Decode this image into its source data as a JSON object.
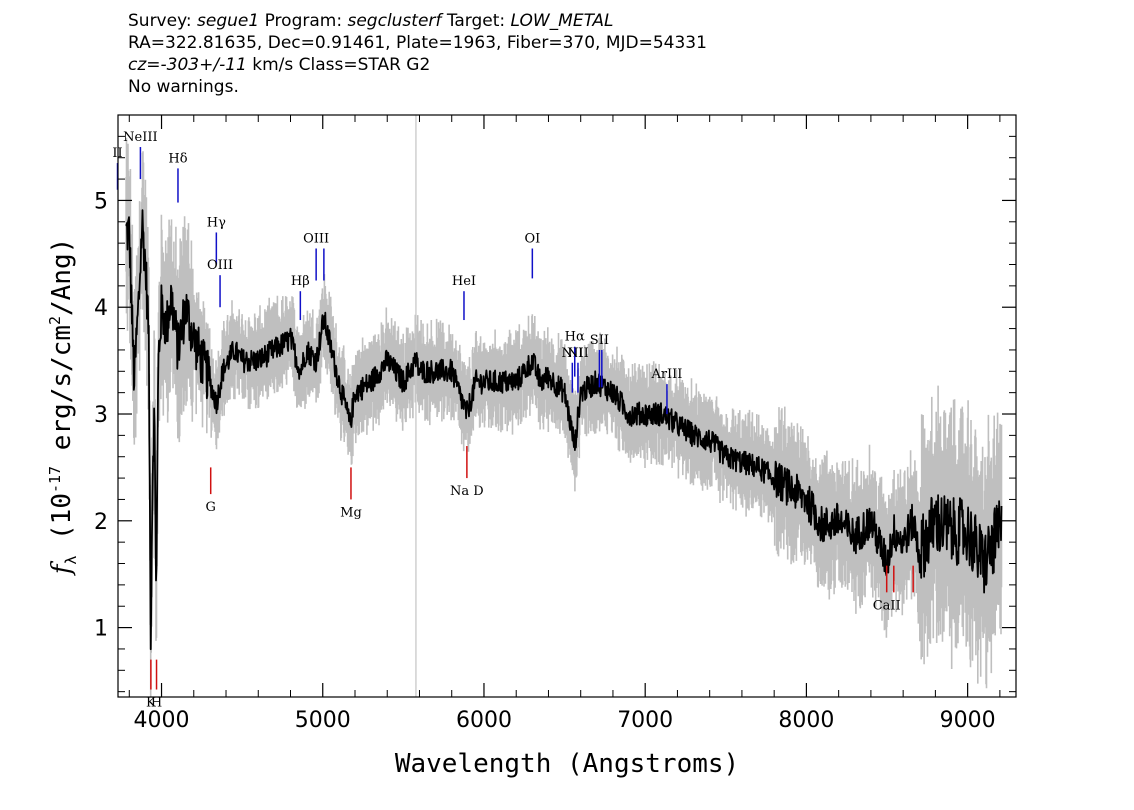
{
  "header": {
    "survey_label": "Survey:",
    "survey": "segue1",
    "program_label": "Program:",
    "program": "segclusterf",
    "target_label": "Target:",
    "target": "LOW_METAL",
    "line2": "RA=322.81635, Dec=0.91461, Plate=1963, Fiber=370, MJD=54331",
    "cz_label": "cz=",
    "cz": "-303+/-11",
    "cz_rest": " km/s Class=STAR G2",
    "warnings": "No warnings."
  },
  "chart_data": {
    "type": "line",
    "xlabel": "Wavelength (Angstroms)",
    "ylabel_main": "f",
    "ylabel_sub": "λ",
    "ylabel_rest_a": " (10",
    "ylabel_exp1": "-17",
    "ylabel_rest_b": " erg/s/cm",
    "ylabel_exp2": "2",
    "ylabel_rest_c": "/Ang)",
    "xlim": [
      3730,
      9300
    ],
    "ylim": [
      0.35,
      5.8
    ],
    "xticks": [
      4000,
      5000,
      6000,
      7000,
      8000,
      9000
    ],
    "yticks": [
      1,
      2,
      3,
      4,
      5
    ],
    "vertical_marker": 5578,
    "colors": {
      "flux": "#000000",
      "error_band": "#bfbfbf",
      "emission": "#1010c8",
      "absorption": "#d01010",
      "marker": "#c8c8c8"
    },
    "series": [
      {
        "role": "smoothed-flux",
        "x": [
          3800,
          3830,
          3860,
          3880,
          3900,
          3920,
          3933,
          3945,
          3955,
          3968,
          3980,
          4000,
          4030,
          4060,
          4102,
          4150,
          4200,
          4250,
          4300,
          4340,
          4380,
          4450,
          4500,
          4600,
          4700,
          4800,
          4861,
          4900,
          4960,
          5007,
          5100,
          5170,
          5200,
          5300,
          5400,
          5500,
          5578,
          5600,
          5700,
          5800,
          5893,
          5950,
          6000,
          6100,
          6200,
          6300,
          6350,
          6400,
          6500,
          6563,
          6600,
          6700,
          6800,
          6900,
          7000,
          7100,
          7200,
          7300,
          7400,
          7500,
          7600,
          7700,
          7800,
          7900,
          8000,
          8100,
          8200,
          8300,
          8400,
          8498,
          8542,
          8600,
          8662,
          8700,
          8800,
          8900,
          9000,
          9100,
          9200
        ],
        "y": [
          4.7,
          3.3,
          4.1,
          4.8,
          4.4,
          3.8,
          1.0,
          2.5,
          3.0,
          1.3,
          3.5,
          4.0,
          3.8,
          4.1,
          3.6,
          4.0,
          3.7,
          3.5,
          3.3,
          3.1,
          3.4,
          3.6,
          3.5,
          3.5,
          3.6,
          3.7,
          3.4,
          3.6,
          3.5,
          3.9,
          3.3,
          2.9,
          3.2,
          3.3,
          3.5,
          3.3,
          3.5,
          3.4,
          3.4,
          3.4,
          3.0,
          3.3,
          3.3,
          3.3,
          3.3,
          3.5,
          3.3,
          3.35,
          3.2,
          2.7,
          3.2,
          3.3,
          3.2,
          3.0,
          3.0,
          3.0,
          2.9,
          2.8,
          2.75,
          2.6,
          2.55,
          2.5,
          2.4,
          2.3,
          2.2,
          1.95,
          2.0,
          1.85,
          2.0,
          1.6,
          1.9,
          1.8,
          2.0,
          1.7,
          2.0,
          1.9,
          1.9,
          1.6,
          1.9
        ]
      }
    ],
    "emission_lines": [
      {
        "label": "NeIII",
        "x": 3869,
        "y1": 5.2,
        "y2": 5.5
      },
      {
        "label": "Hδ",
        "x": 4102,
        "y1": 4.98,
        "y2": 5.3
      },
      {
        "label": "Hγ",
        "x": 4340,
        "y1": 4.4,
        "y2": 4.7
      },
      {
        "label": "OIII",
        "x": 4363,
        "y1": 4.0,
        "y2": 4.3
      },
      {
        "label": "Hβ",
        "x": 4861,
        "y1": 3.88,
        "y2": 4.15
      },
      {
        "label": "OIII",
        "x": 4959,
        "y1": 4.25,
        "y2": 4.55
      },
      {
        "label": "",
        "x": 5007,
        "y1": 4.25,
        "y2": 4.55
      },
      {
        "label": "HeI",
        "x": 5876,
        "y1": 3.88,
        "y2": 4.15
      },
      {
        "label": "OI",
        "x": 6300,
        "y1": 4.27,
        "y2": 4.55
      },
      {
        "label": "NII",
        "x": 6548,
        "y1": 3.2,
        "y2": 3.48
      },
      {
        "label": "Hα",
        "x": 6563,
        "y1": 3.35,
        "y2": 3.63
      },
      {
        "label": "NII",
        "x": 6583,
        "y1": 3.2,
        "y2": 3.48
      },
      {
        "label": "SII",
        "x": 6716,
        "y1": 3.25,
        "y2": 3.6
      },
      {
        "label": "",
        "x": 6731,
        "y1": 3.25,
        "y2": 3.6
      },
      {
        "label": "ArIII",
        "x": 7135,
        "y1": 3.0,
        "y2": 3.28
      },
      {
        "label": "II",
        "x": 3727,
        "y1": 5.1,
        "y2": 5.35
      }
    ],
    "absorption_lines": [
      {
        "label": "K",
        "x": 3934,
        "y1": 0.42,
        "y2": 0.7
      },
      {
        "label": "H",
        "x": 3969,
        "y1": 0.42,
        "y2": 0.7
      },
      {
        "label": "G",
        "x": 4305,
        "y1": 2.25,
        "y2": 2.5
      },
      {
        "label": "Mg",
        "x": 5175,
        "y1": 2.2,
        "y2": 2.5
      },
      {
        "label": "Na D",
        "x": 5894,
        "y1": 2.4,
        "y2": 2.7
      },
      {
        "label": "CaII",
        "x": 8498,
        "y1": 1.33,
        "y2": 1.58
      },
      {
        "label": "",
        "x": 8542,
        "y1": 1.33,
        "y2": 1.58
      },
      {
        "label": "",
        "x": 8662,
        "y1": 1.33,
        "y2": 1.58
      }
    ]
  }
}
